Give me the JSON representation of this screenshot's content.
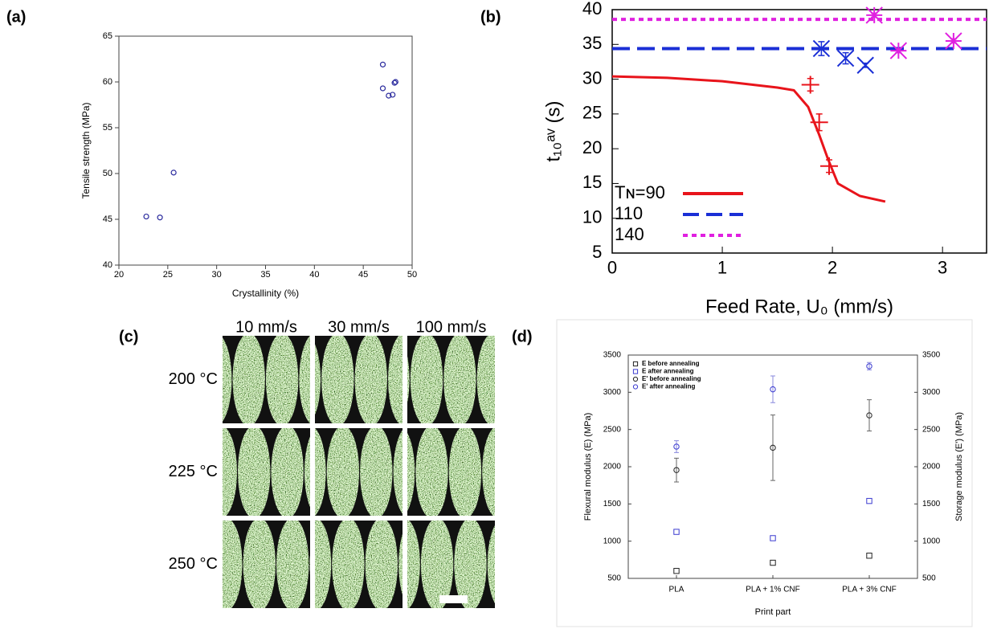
{
  "chart_data": [
    {
      "type": "scatter",
      "panel_label": "(a)",
      "x_label": "Crystallinity (%)",
      "y_label": "Tensile strength (MPa)",
      "x": [
        22.8,
        24.2,
        25.6,
        47,
        47,
        47.6,
        48,
        48.2,
        48.3
      ],
      "values": [
        45.3,
        45.2,
        50.1,
        61.9,
        59.3,
        58.5,
        58.6,
        59.9,
        60.0
      ],
      "color": "#2b2b9e",
      "marker": "circle",
      "xlim": [
        20,
        50
      ],
      "xticks": [
        20,
        25,
        30,
        35,
        40,
        45,
        50
      ],
      "ylim": [
        40,
        65
      ],
      "yticks": [
        40,
        45,
        50,
        55,
        60,
        65
      ]
    },
    {
      "type": "line",
      "panel_label": "(b)",
      "x_label": "Feed Rate, U₀ (mm/s)",
      "y_label": "t₁₀ᵃᵛ (s)",
      "xlim": [
        0,
        3.4
      ],
      "xticks": [
        0,
        1,
        2,
        3
      ],
      "ylim": [
        5,
        40
      ],
      "yticks": [
        5,
        10,
        15,
        20,
        25,
        30,
        35,
        40
      ],
      "series": [
        {
          "name": "Tɴ=90",
          "color": "#e8141b",
          "dash": "solid",
          "x": [
            0,
            0.5,
            1,
            1.5,
            1.65,
            1.78,
            1.88,
            1.96,
            2.05,
            2.25,
            2.48
          ],
          "values": [
            30.4,
            30.2,
            29.7,
            28.8,
            28.4,
            26,
            22,
            18.5,
            15,
            13.2,
            12.4
          ],
          "points": {
            "marker": "plus",
            "x": [
              1.8,
              1.88,
              1.97
            ],
            "values": [
              29.2,
              23.8,
              17.5
            ],
            "errors": [
              0.9,
              1.2,
              0.9
            ]
          }
        },
        {
          "name": "110",
          "color": "#1a2fd6",
          "dash": "dashed",
          "x": [
            0,
            3.4
          ],
          "values": [
            34.4,
            34.4
          ],
          "points": {
            "marker": "x",
            "x": [
              1.9,
              2.12,
              2.3
            ],
            "values": [
              34.4,
              33,
              32
            ],
            "errors": [
              1,
              0.8,
              0.3
            ]
          }
        },
        {
          "name": "140",
          "color": "#e020e0",
          "dash": "dotted",
          "x": [
            0,
            3.4
          ],
          "values": [
            38.6,
            38.6
          ],
          "points": {
            "marker": "star",
            "x": [
              2.38,
              2.6,
              3.1
            ],
            "values": [
              39.2,
              34.1,
              35.5
            ],
            "errors": [
              0.3,
              0.3,
              0.3
            ]
          }
        }
      ]
    },
    {
      "type": "point",
      "panel_label": "(d)",
      "x_label": "Print part",
      "y_label": "Flexural modulus (E) (MPa)",
      "y2_label": "Storage modulus (E') (MPa)",
      "categories": [
        "PLA",
        "PLA + 1% CNF",
        "PLA + 3% CNF"
      ],
      "ylim": [
        500,
        3500
      ],
      "yticks": [
        500,
        1000,
        1500,
        2000,
        2500,
        3000,
        3500
      ],
      "y2lim": [
        500,
        3500
      ],
      "y2ticks": [
        500,
        1000,
        1500,
        2000,
        2500,
        3000,
        3500
      ],
      "series": [
        {
          "name": "E before annealing",
          "color": "#222222",
          "marker": "square",
          "values": [
            600,
            710,
            805
          ]
        },
        {
          "name": "E after annealing",
          "color": "#3b3bd0",
          "marker": "square",
          "values": [
            1125,
            1040,
            1540
          ]
        },
        {
          "name": "E' before annealing",
          "color": "#222222",
          "marker": "circle",
          "axis": "y2",
          "values": [
            1955,
            2255,
            2690
          ],
          "errors": [
            160,
            440,
            210
          ]
        },
        {
          "name": "E' after annealing",
          "color": "#3b3bd0",
          "marker": "circle",
          "axis": "y2",
          "values": [
            2270,
            3040,
            3350
          ],
          "errors": [
            80,
            180,
            50
          ]
        }
      ]
    }
  ],
  "micrograph": {
    "panel_label": "(c)",
    "columns": [
      "10 mm/s",
      "30 mm/s",
      "100 mm/s"
    ],
    "rows": [
      "200 °C",
      "225 °C",
      "250 °C"
    ]
  }
}
